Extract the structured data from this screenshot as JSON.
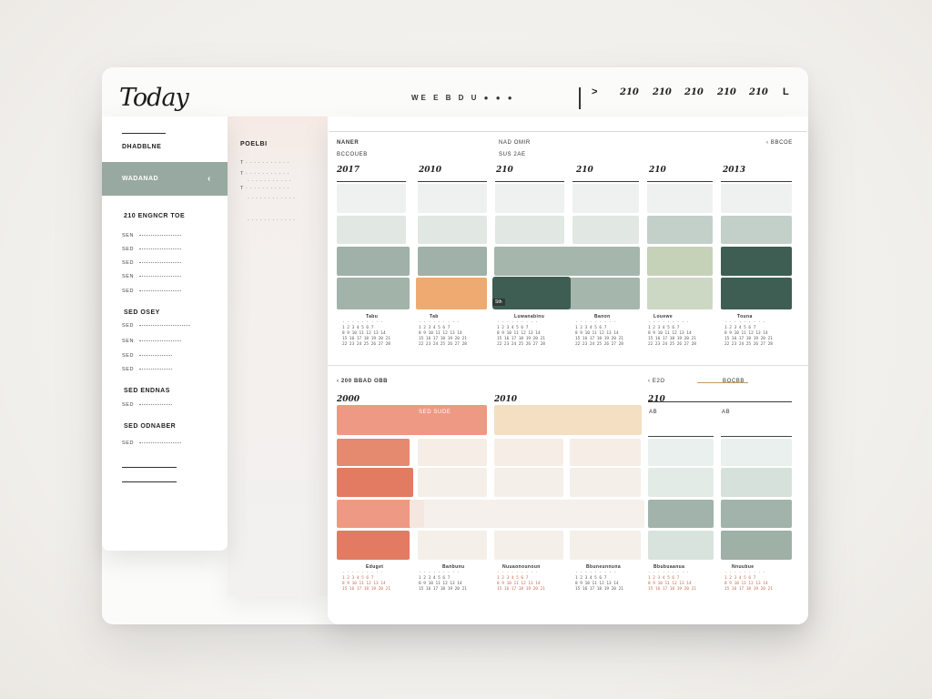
{
  "window": {
    "title": "Today",
    "nav_text": "WE  E  B  D  U  ●  ●  ●",
    "prev_label": ">",
    "years": [
      "210",
      "210",
      "210",
      "210",
      "210"
    ],
    "next_label": "L"
  },
  "sidebar": {
    "heading": "DHADBLNE",
    "active_item": "WADANAD",
    "active_chevron": "‹",
    "section1_title": "210  ENGNCR TOE",
    "section1_items": [
      "SEN",
      "SED",
      "SED",
      "SEN",
      "SED"
    ],
    "section2_title": "SED  OSEY",
    "section2_items": [
      "SED",
      "SEN",
      "SED",
      "SED"
    ],
    "section3_title": "SED  ENDNAS",
    "section3_items": [
      "SED"
    ],
    "section4_title": "SED  ODNABER",
    "section4_items": [
      "SED"
    ]
  },
  "subpanel": {
    "heading": "POELBI",
    "items": [
      "T  · · · · · · · · · · ·",
      "T  · · · · · · · · · · ·",
      "· · · · · · · · · · ·",
      "T  · · · · · · · · · · ·",
      "· · · · · · · · · · · ·",
      "· · · · · · · · · · · ·"
    ]
  },
  "calendar": {
    "top_left": "NANER",
    "top_left_sub": "BCCOUEB",
    "top_center": "NAD  OMIR",
    "top_center_sub": "SUS  2AE",
    "top_right": "‹  BBCOE",
    "section1_columns": [
      "2017",
      "2010",
      "210",
      "210",
      "210",
      "2013"
    ],
    "section1_mini_titles": [
      "Tabu",
      "Tab",
      "Luwanabinu",
      "Banon",
      "Louewe",
      "Touna"
    ],
    "section2_header_left": "‹ 200  BBAD  OBB",
    "section2_header_right": "‹  E2O",
    "section2_header_right2": "BOCBB",
    "section2_columns": [
      "2000",
      "2010",
      "210",
      "AB",
      "AB"
    ],
    "section2_block_label": "SED  SUDE",
    "section2_mini_titles": [
      "Eduget",
      "Banbunu",
      "Nuuaonounoun",
      "Bbuneunnuna",
      "Bbubuaanua",
      "Nnuubue"
    ],
    "tag_label": "Sth"
  },
  "colors": {
    "sage": "#97a9a0",
    "sage_light": "#c9d3cd",
    "sage_pale": "#e4ebe7",
    "forest": "#3e5e53",
    "peach": "#eeaa70",
    "coral": "#ee9983",
    "coral_dark": "#e27b62",
    "sand": "#f4dfc2",
    "olive_light": "#cfd9c1"
  }
}
